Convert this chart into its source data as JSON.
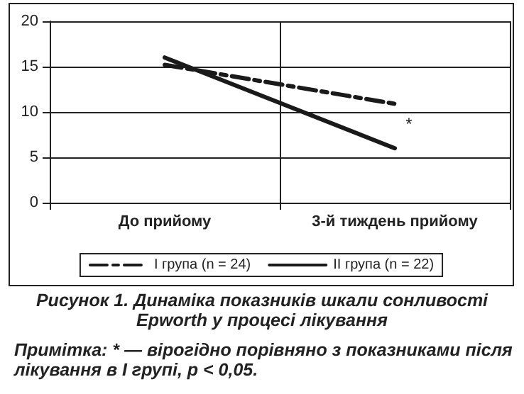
{
  "chart_data": {
    "type": "line",
    "title": "Рисунок 1. Динаміка показників шкали сонливості Epworth у процесі лікування",
    "categories": [
      "До прийому",
      "3-й тиждень прийому"
    ],
    "series": [
      {
        "name": "I група (n = 24)",
        "color": "#1a1a1a",
        "values": [
          15.2,
          10.9
        ],
        "line_style": "dashed"
      },
      {
        "name": "II група (n = 22)",
        "color": "#1a1a1a",
        "values": [
          16.0,
          6.0
        ],
        "line_style": "solid"
      }
    ],
    "ylim": [
      0,
      20
    ],
    "yticks": [
      0,
      5,
      10,
      15,
      20
    ],
    "grid": true,
    "legend": "bottom",
    "marker": "none",
    "annotations": [
      {
        "text": "*",
        "x": "3-й тиждень прийому",
        "y": 6.0
      },
      "Примітка: * — вірогідно порівняно з показниками після лікування в I групі, p < 0,05."
    ]
  }
}
